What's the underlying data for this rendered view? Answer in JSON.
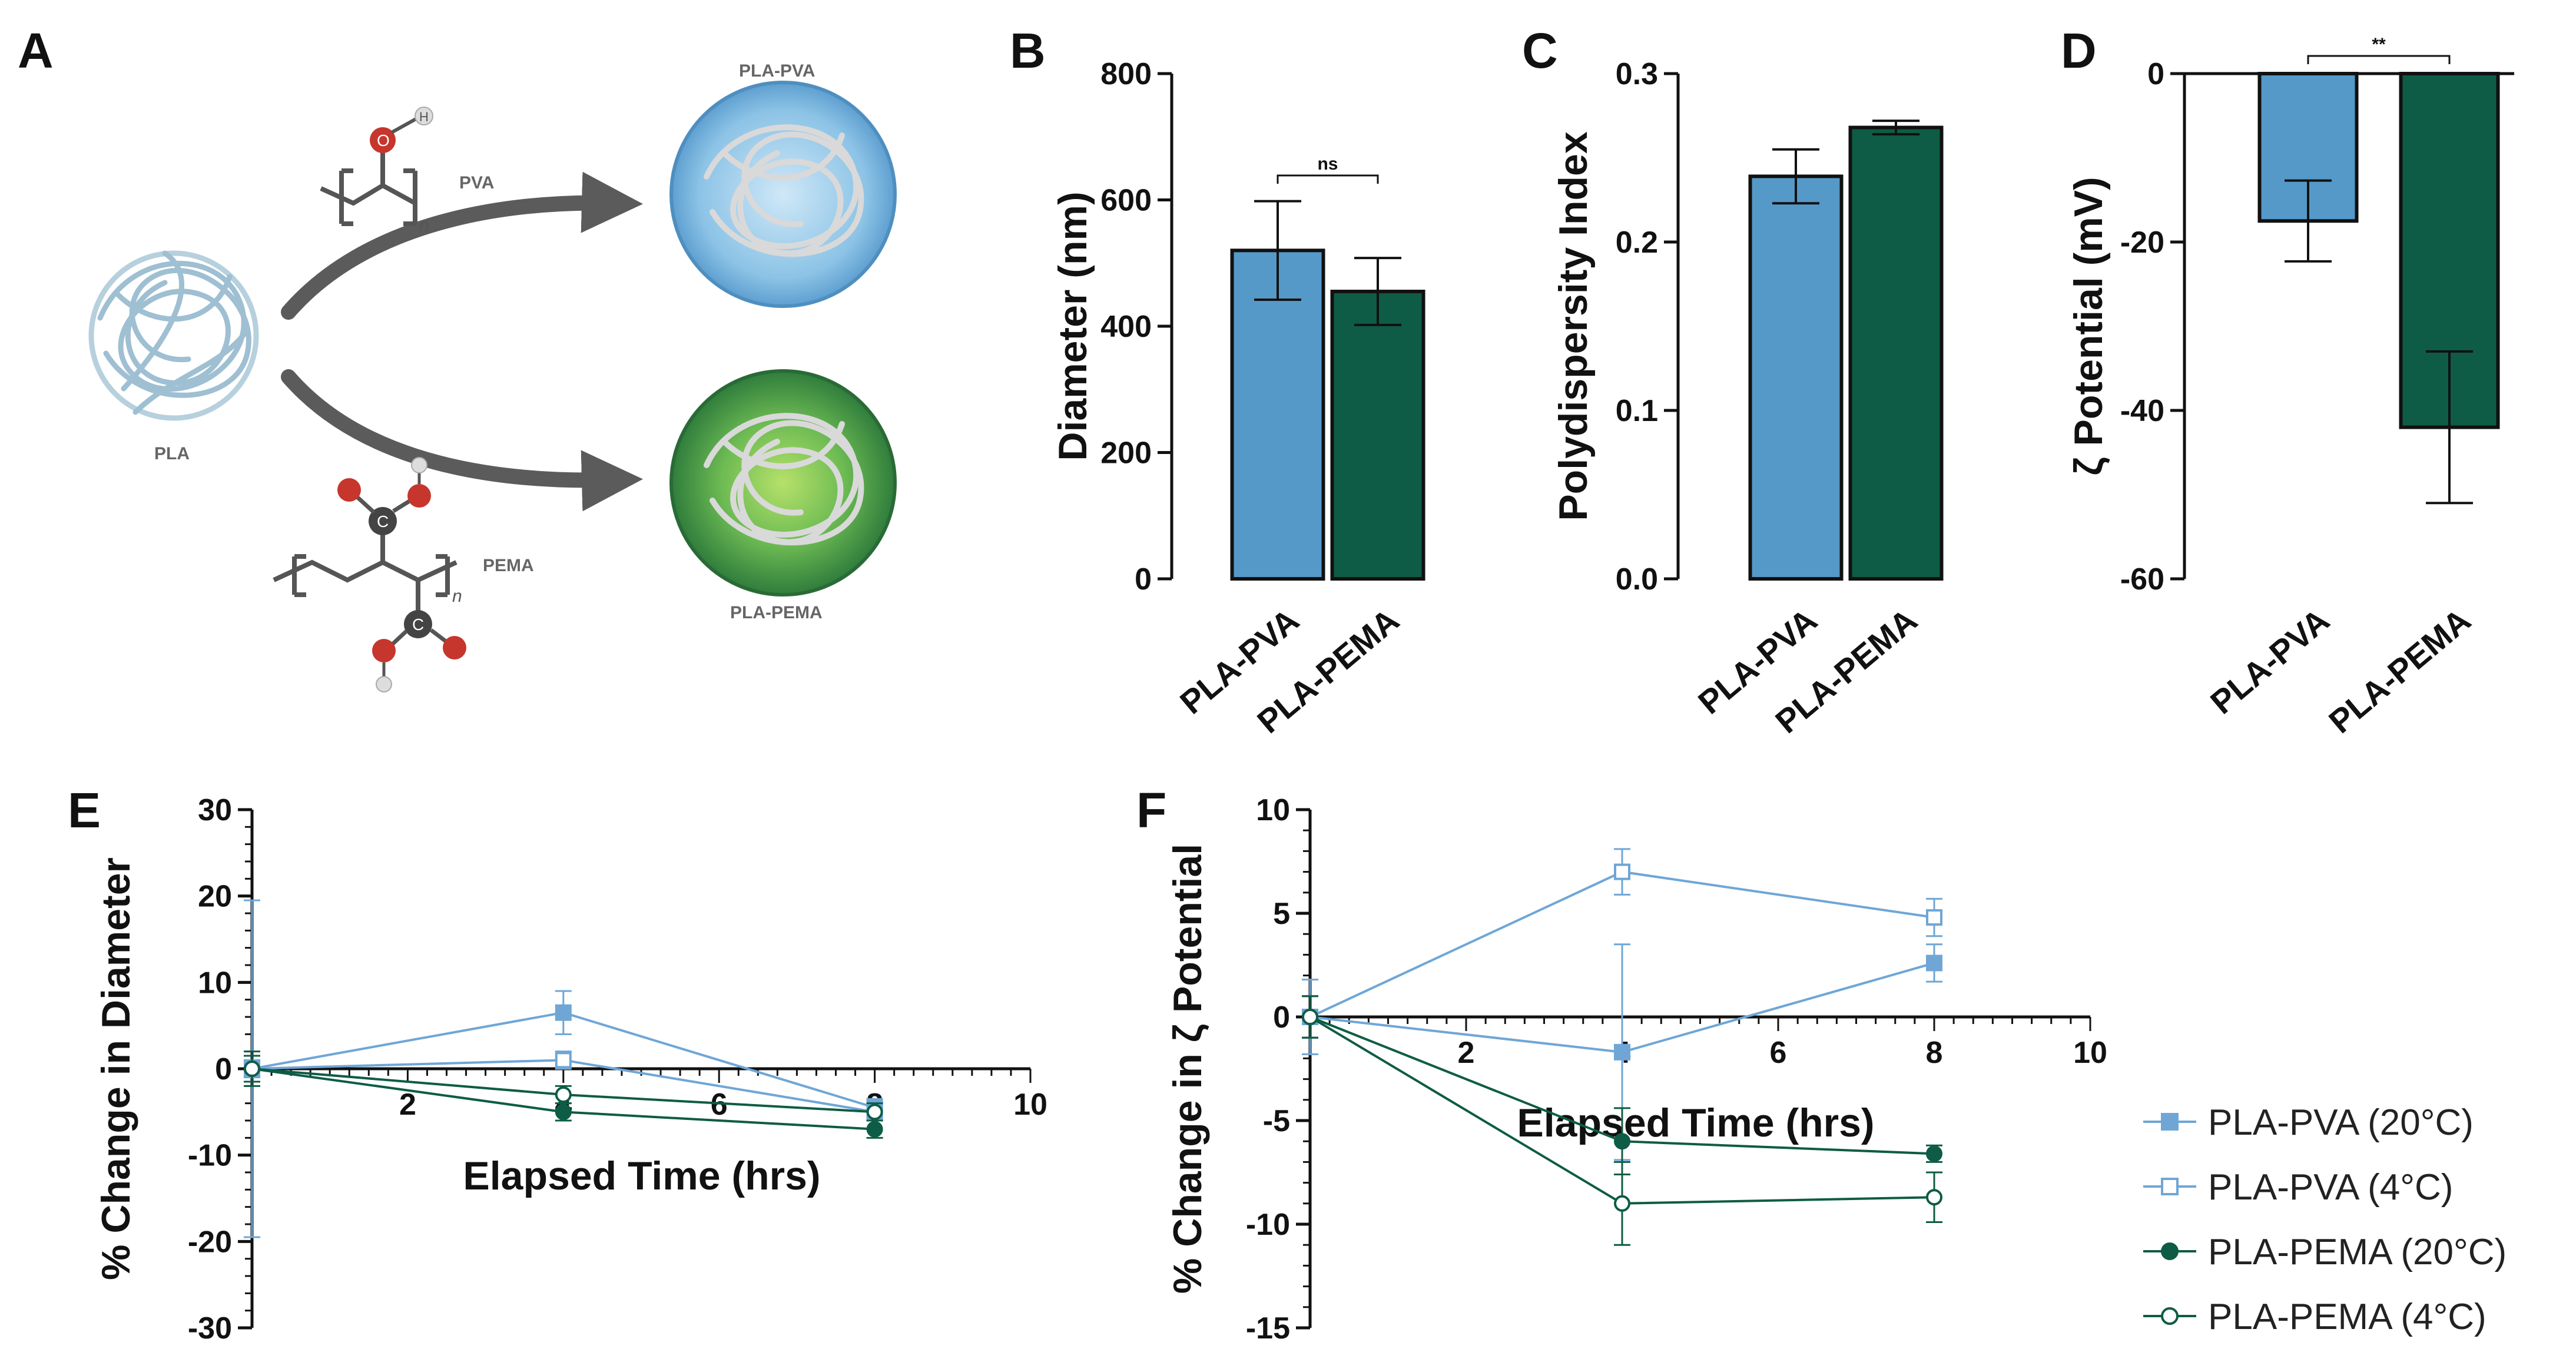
{
  "panel_labels": {
    "a": "A",
    "b": "B",
    "c": "C",
    "d": "D",
    "e": "E",
    "f": "F"
  },
  "schematic": {
    "core_label": "PLA",
    "polymer1_label": "PVA",
    "polymer2_label": "PEMA",
    "product1_label": "PLA-PVA",
    "product2_label": "PLA-PEMA",
    "repeat_subscript": "n",
    "atom_O": "O",
    "atom_H": "H",
    "atom_C": "C"
  },
  "colors": {
    "pva": "#5599c8",
    "pema": "#0e5c45",
    "pva_light": "#6fa6d6"
  },
  "chart_data": [
    {
      "panel": "B",
      "type": "bar",
      "categories": [
        "PLA-PVA",
        "PLA-PEMA"
      ],
      "values": [
        520,
        455
      ],
      "errors": [
        78,
        53
      ],
      "ylabel": "Diameter (nm)",
      "ylim": [
        0,
        800
      ],
      "yticks": [
        0,
        200,
        400,
        600,
        800
      ],
      "significance": "ns"
    },
    {
      "panel": "C",
      "type": "bar",
      "categories": [
        "PLA-PVA",
        "PLA-PEMA"
      ],
      "values": [
        0.239,
        0.268
      ],
      "errors": [
        0.016,
        0.004
      ],
      "ylabel": "Polydispersity Index",
      "ylim": [
        0,
        0.3
      ],
      "yticks": [
        "0.0",
        "0.1",
        "0.2",
        "0.3"
      ]
    },
    {
      "panel": "D",
      "type": "bar",
      "categories": [
        "PLA-PVA",
        "PLA-PEMA"
      ],
      "values": [
        -17.5,
        -42
      ],
      "errors": [
        4.8,
        9
      ],
      "ylabel": "ζ Potential (mV)",
      "ylim": [
        -60,
        0
      ],
      "yticks": [
        "0",
        "-20",
        "-40",
        "-60"
      ],
      "significance": "**"
    },
    {
      "panel": "E",
      "type": "line",
      "xlabel": "Elapsed Time (hrs)",
      "ylabel": "% Change in Diameter",
      "xlim": [
        0,
        10
      ],
      "ylim": [
        -30,
        30
      ],
      "xticks": [
        "2",
        "4",
        "6",
        "8",
        "10"
      ],
      "yticks": [
        "30",
        "20",
        "10",
        "0",
        "-10",
        "-20",
        "-30"
      ],
      "series": [
        {
          "name": "PLA-PVA (20°C)",
          "x": [
            0,
            4,
            8
          ],
          "y": [
            0,
            6.5,
            -4.5
          ],
          "err": [
            19.5,
            2.5,
            1
          ]
        },
        {
          "name": "PLA-PVA (4°C)",
          "x": [
            0,
            4,
            8
          ],
          "y": [
            0,
            1,
            -5
          ],
          "err": [
            1,
            1,
            1
          ]
        },
        {
          "name": "PLA-PEMA (20°C)",
          "x": [
            0,
            4,
            8
          ],
          "y": [
            0,
            -5,
            -7
          ],
          "err": [
            2,
            1,
            1
          ]
        },
        {
          "name": "PLA-PEMA (4°C)",
          "x": [
            0,
            4,
            8
          ],
          "y": [
            0,
            -3,
            -5
          ],
          "err": [
            1.5,
            1,
            1
          ]
        }
      ]
    },
    {
      "panel": "F",
      "type": "line",
      "xlabel": "Elapsed Time (hrs)",
      "ylabel": "% Change in ζ Potential",
      "xlim": [
        0,
        10
      ],
      "ylim": [
        -15,
        10
      ],
      "xticks": [
        "2",
        "4",
        "6",
        "8",
        "10"
      ],
      "yticks": [
        "10",
        "5",
        "0",
        "-5",
        "-10",
        "-15"
      ],
      "series": [
        {
          "name": "PLA-PVA (20°C)",
          "x": [
            0,
            4,
            8
          ],
          "y": [
            0,
            -1.7,
            2.6
          ],
          "err": [
            1.8,
            5.2,
            0.9
          ]
        },
        {
          "name": "PLA-PVA (4°C)",
          "x": [
            0,
            4,
            8
          ],
          "y": [
            0,
            7,
            4.8
          ],
          "err": [
            1,
            1.1,
            0.9
          ]
        },
        {
          "name": "PLA-PEMA (20°C)",
          "x": [
            0,
            4,
            8
          ],
          "y": [
            0,
            -6,
            -6.6
          ],
          "err": [
            1,
            1.6,
            0.4
          ]
        },
        {
          "name": "PLA-PEMA (4°C)",
          "x": [
            0,
            4,
            8
          ],
          "y": [
            0,
            -9,
            -8.7
          ],
          "err": [
            1,
            2,
            1.2
          ]
        }
      ]
    }
  ]
}
